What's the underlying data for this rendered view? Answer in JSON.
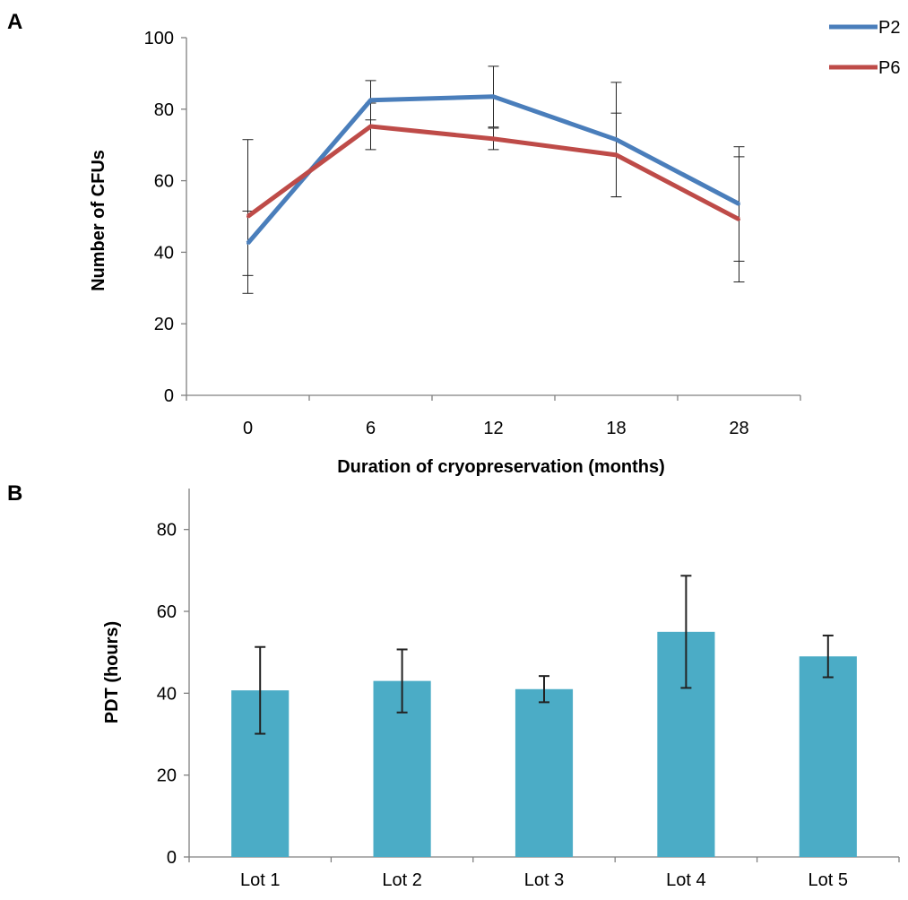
{
  "figure": {
    "panel_a_letter": "A",
    "panel_b_letter": "B"
  },
  "chart_data": [
    {
      "type": "line",
      "panel": "A",
      "title": "",
      "xlabel": "Duration of cryopreservation (months)",
      "ylabel": "Number of CFUs",
      "categories": [
        "0",
        "6",
        "12",
        "18",
        "28"
      ],
      "ylim": [
        0,
        100
      ],
      "yticks": [
        0,
        20,
        40,
        60,
        80,
        100
      ],
      "grid": false,
      "legend_position": "top-right",
      "series": [
        {
          "name": "P2",
          "color": "#4A7EBB",
          "values": [
            42.5,
            82.5,
            83.5,
            71.5,
            53.5
          ],
          "error": [
            9.0,
            5.5,
            8.5,
            16.0,
            16.0
          ]
        },
        {
          "name": "P6",
          "color": "#BE4B48",
          "values": [
            50.0,
            75.2,
            71.7,
            67.2,
            49.2
          ],
          "error": [
            21.5,
            6.5,
            3.0,
            11.7,
            17.5
          ]
        }
      ]
    },
    {
      "type": "bar",
      "panel": "B",
      "title": "",
      "xlabel": "",
      "ylabel": "PDT (hours)",
      "categories": [
        "Lot 1",
        "Lot 2",
        "Lot 3",
        "Lot 4",
        "Lot 5"
      ],
      "ylim": [
        0,
        90
      ],
      "yticks": [
        0,
        20,
        40,
        60,
        80
      ],
      "grid": false,
      "bar_color": "#4BACC6",
      "values": [
        40.7,
        43.0,
        41.0,
        55.0,
        49.0
      ],
      "error": [
        10.6,
        7.7,
        3.2,
        13.7,
        5.1
      ]
    }
  ]
}
